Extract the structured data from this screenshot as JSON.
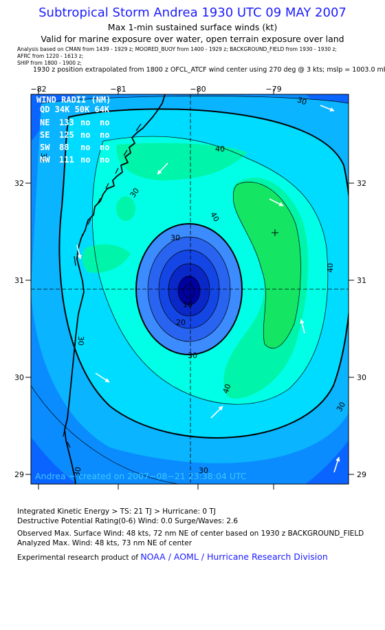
{
  "title": "Subtropical Storm Andrea 1930 UTC 09 MAY 2007",
  "subtitle1": "Max 1-min sustained surface winds (kt)",
  "subtitle2": "Valid for marine exposure over water, open terrain exposure over land",
  "analysis_line1": "Analysis based on  CMAN from 1439 - 1929 z;  MOORED_BUOY from 1400 - 1929 z;  BACKGROUND_FIELD from 1930 - 1930 z;",
  "analysis_line2": "AFRC from 1220 - 1613 z;",
  "analysis_line3": "SHIP from 1800 - 1900 z;",
  "position_note": "1930 z position extrapolated from 1800 z OFCL_ATCF wind center using 270 deg @ 3 kts; mslp = 1003.0 mb",
  "map": {
    "lon_ticks": [
      "−82",
      "−81",
      "−80",
      "−79"
    ],
    "lat_ticks": [
      "32",
      "31",
      "30",
      "29"
    ],
    "wind_radii": {
      "title": "WIND RADII (NM)",
      "header": "QD 34K 50K 64K",
      "rows": [
        {
          "quad": "NE",
          "r34": "133",
          "r50": "no",
          "r64": "no"
        },
        {
          "quad": "SE",
          "r34": "125",
          "r50": "no",
          "r64": "no"
        },
        {
          "quad": "SW",
          "r34": "88",
          "r50": "no",
          "r64": "no"
        },
        {
          "quad": "NW",
          "r34": "111",
          "r50": "no",
          "r64": "no"
        }
      ]
    },
    "contour_labels": [
      "40",
      "40",
      "40",
      "40",
      "30",
      "30",
      "30",
      "30",
      "30",
      "30",
      "30",
      "20",
      "10",
      "30",
      "30"
    ],
    "created_label": "Andrea − created on 2007−08−21 23:38:04 UTC",
    "colors": {
      "c1": "#0a64ff",
      "c2": "#0a8cff",
      "c3": "#0ab4ff",
      "c4": "#00dcff",
      "c5": "#00ffe6",
      "c6": "#00f5aa",
      "c7": "#14e664",
      "core1": "#3c8cff",
      "core2": "#2864f0",
      "core3": "#1446e6",
      "core4": "#0a28c8",
      "core5": "#0000a0"
    }
  },
  "stats": {
    "ike": "Integrated Kinetic Energy > TS: 21 TJ   > Hurricane: 0 TJ",
    "dpr": "Destructive Potential Rating(0-6)   Wind: 0.0 Surge/Waves: 2.6",
    "observed": "Observed Max. Surface Wind: 48 kts, 72 nm NE of center based on 1930 z BACKGROUND_FIELD",
    "analyzed": "Analyzed Max. Wind: 48 kts, 73 nm NE of center",
    "credit_prefix": "Experimental research product of ",
    "credit_org": "NOAA / AOML / Hurricane Research Division"
  }
}
